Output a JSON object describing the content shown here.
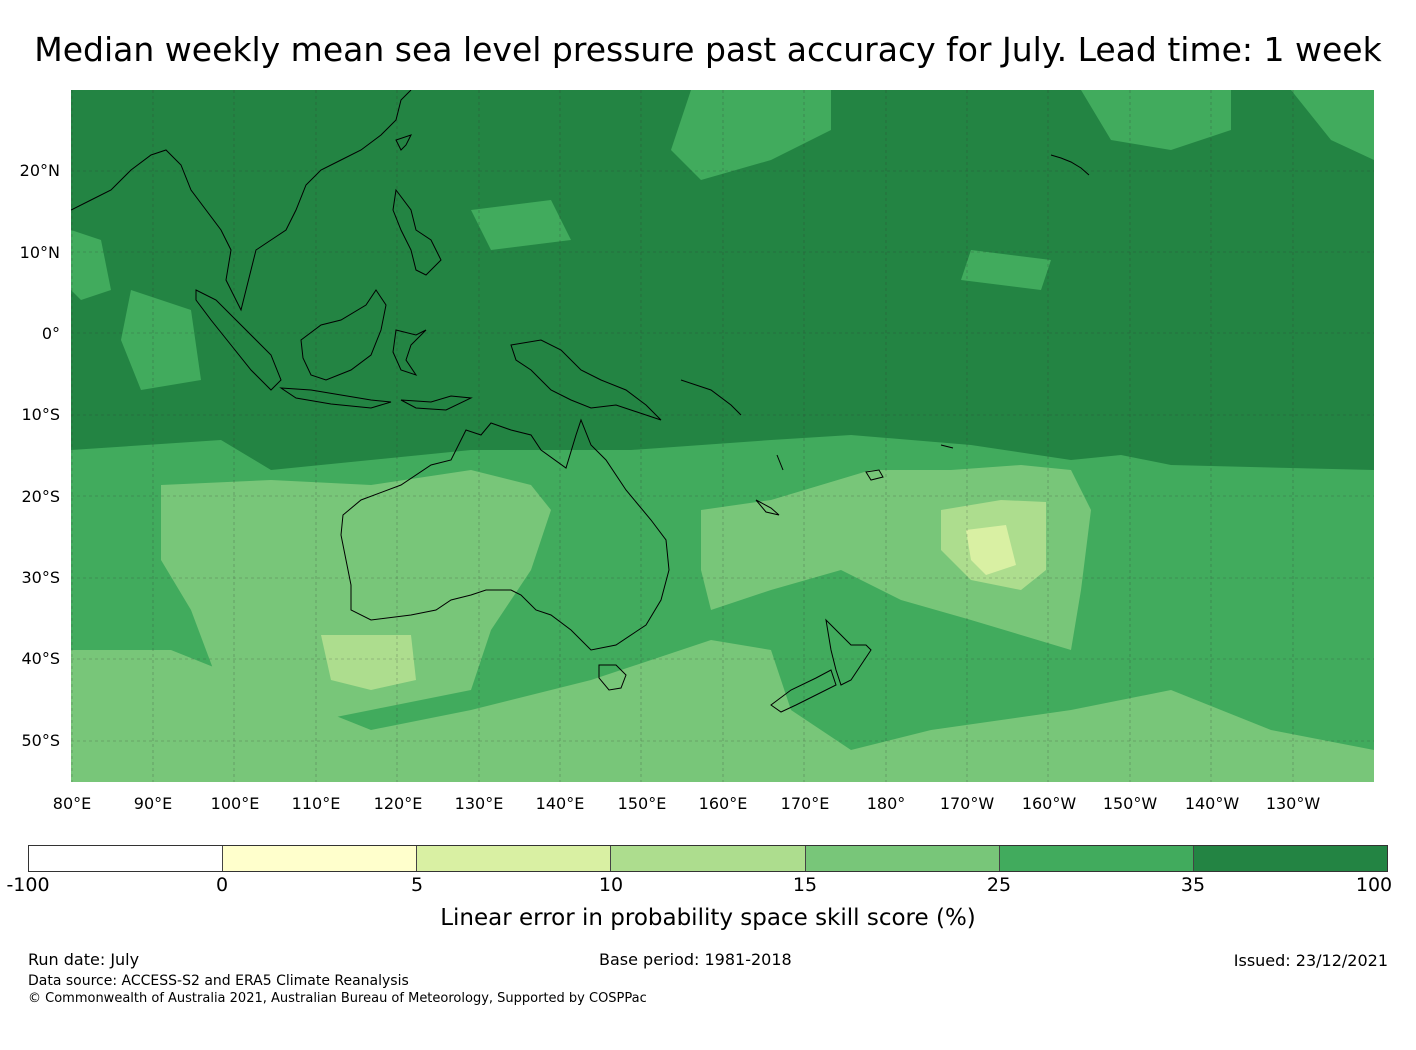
{
  "title": "Median weekly mean sea level pressure past accuracy for July. Lead time: 1 week",
  "map": {
    "lat_labels": [
      "20°N",
      "10°N",
      "0°",
      "10°S",
      "20°S",
      "30°S",
      "40°S",
      "50°S"
    ],
    "lon_labels": [
      "80°E",
      "90°E",
      "100°E",
      "110°E",
      "120°E",
      "130°E",
      "140°E",
      "150°E",
      "160°E",
      "170°E",
      "180°",
      "170°W",
      "160°W",
      "150°W",
      "140°W",
      "130°W"
    ],
    "colors": {
      "band_15_25": "#78c679",
      "band_25_35": "#41ab5d",
      "band_35_100": "#238443",
      "band_10_15": "#addd8e",
      "band_5_10": "#d9f0a3",
      "coast": "#000000",
      "grid": "#555555"
    }
  },
  "colorbar": {
    "label": "Linear error in probability space skill score (%)",
    "ticks": [
      "-100",
      "0",
      "5",
      "10",
      "15",
      "25",
      "35",
      "100"
    ],
    "colors": [
      "#ffffff",
      "#ffffcc",
      "#d9f0a3",
      "#addd8e",
      "#78c679",
      "#41ab5d",
      "#238443"
    ]
  },
  "footer": {
    "run_date": "Run date: July",
    "base_period": "Base period: 1981-2018",
    "issued": "Issued: 23/12/2021",
    "data_source": "Data source: ACCESS-S2 and ERA5 Climate Reanalysis",
    "copyright": "© Commonwealth of Australia 2021, Australian Bureau of Meteorology, Supported by COSPPac"
  }
}
